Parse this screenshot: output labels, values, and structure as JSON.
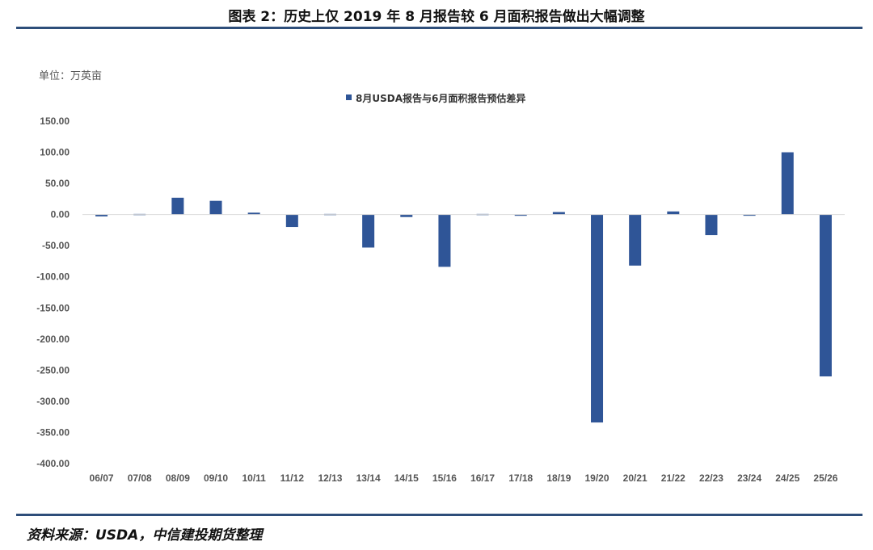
{
  "title": "图表 2：历史上仅 2019 年 8 月报告较 6 月面积报告做出大幅调整",
  "unit_label": "单位：万英亩",
  "source": "资料来源：USDA，中信建投期货整理",
  "colors": {
    "bar": "#2f5597",
    "rule": "#2e4e7a",
    "axis": "#d9d9d9"
  },
  "chart_data": {
    "type": "bar",
    "categories": [
      "06/07",
      "07/08",
      "08/09",
      "09/10",
      "10/11",
      "11/12",
      "12/13",
      "13/14",
      "14/15",
      "15/16",
      "16/17",
      "17/18",
      "18/19",
      "19/20",
      "20/21",
      "21/22",
      "22/23",
      "23/24",
      "24/25",
      "25/26"
    ],
    "series": [
      {
        "name": "8月USDA报告与6月面积报告预估差异",
        "values": [
          -3,
          1,
          27,
          22,
          3,
          -20,
          1,
          -53,
          -4,
          -84,
          1,
          -2,
          4,
          -334,
          -82,
          5,
          -33,
          -1,
          100,
          -260
        ]
      }
    ],
    "y_ticks": [
      "150.00",
      "100.00",
      "50.00",
      "0.00",
      "-50.00",
      "-100.00",
      "-150.00",
      "-200.00",
      "-250.00",
      "-300.00",
      "-350.00",
      "-400.00"
    ],
    "ylim": [
      -400,
      150
    ],
    "legend_position": "top-center",
    "grid": false
  }
}
